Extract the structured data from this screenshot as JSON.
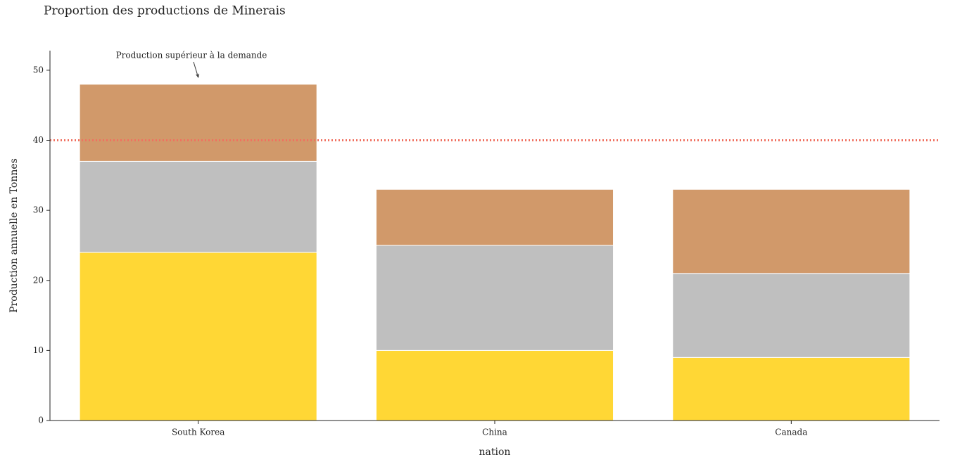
{
  "chart_data": {
    "type": "stacked-bar",
    "title": "Proportion des productions de Minerais",
    "x_label": "nation",
    "y_label": "Production annuelle en Tonnes",
    "categories": [
      "South Korea",
      "China",
      "Canada"
    ],
    "series": [
      {
        "color": "#ffd735",
        "values": [
          24,
          10,
          9
        ]
      },
      {
        "color": "#bfbfbf",
        "values": [
          13,
          15,
          12
        ]
      },
      {
        "color": "#d1996a",
        "values": [
          11,
          8,
          12
        ]
      }
    ],
    "ylim": [
      0,
      52.8
    ],
    "yticks": [
      0,
      10,
      20,
      30,
      40,
      50
    ],
    "reference_line": {
      "value": 40,
      "color": "#f07060"
    },
    "annotation": {
      "text": "Production supérieur à la demande",
      "value": 49
    }
  }
}
